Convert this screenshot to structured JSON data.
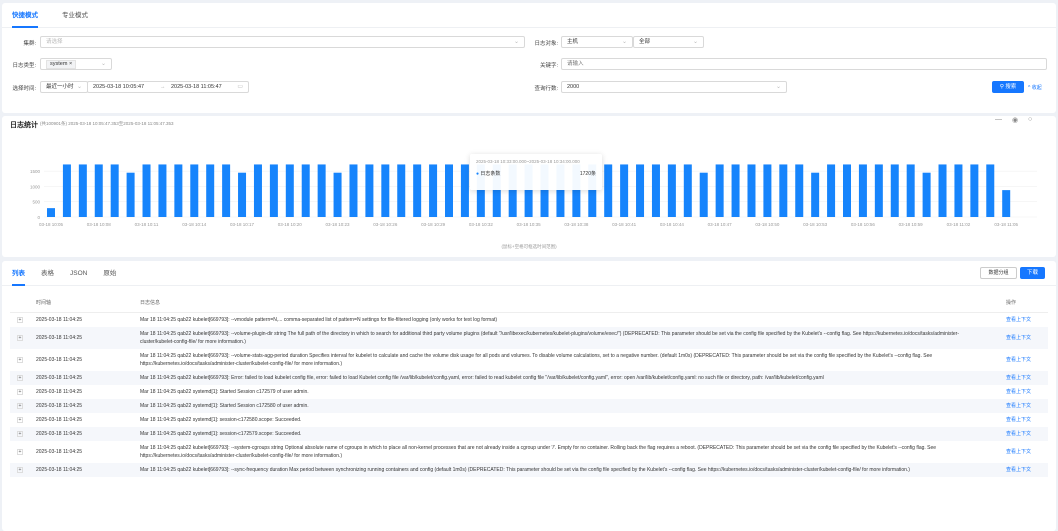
{
  "mode_tabs": [
    {
      "label": "快捷模式",
      "active": true
    },
    {
      "label": "专业模式",
      "active": false
    }
  ],
  "filters": {
    "cluster": {
      "label": "集群:",
      "placeholder": "请选择"
    },
    "log_object": {
      "label": "日志对象:",
      "type_value": "主机",
      "scope_value": "全部"
    },
    "log_type": {
      "label": "日志类型:",
      "tag": "system"
    },
    "keyword": {
      "label": "关键字:",
      "placeholder": "请输入"
    },
    "time": {
      "label": "选择时间:",
      "preset": "最近一小时",
      "start": "2025-03-18 10:05:47",
      "sep": "→",
      "end": "2025-03-18 11:05:47"
    },
    "rows": {
      "label": "查询行数:",
      "value": "2000"
    },
    "search_label": "搜索",
    "collapse_label": "收起"
  },
  "stats": {
    "title": "日志统计",
    "subtitle": "(共100901条) 2025-03-18 10:05:47.353至2025-03-18 11:05:47.353",
    "hint": "(鼠标+空格可框选时间范围)",
    "tooltip": {
      "range": "2025-03-18 10:33:00.000~2025-03-18 10:34:00.000",
      "series": "日志条数",
      "value": "1720条"
    }
  },
  "chart_data": {
    "type": "bar",
    "start_time": "03-18 10:05",
    "x_ticks": [
      "03-18 10:05",
      "03-18 10:08",
      "03-18 10:11",
      "03-18 10:14",
      "03-18 10:17",
      "03-18 10:20",
      "03-18 10:23",
      "03-18 10:26",
      "03-18 10:29",
      "03-18 10:32",
      "03-18 10:35",
      "03-18 10:38",
      "03-18 10:41",
      "03-18 10:44",
      "03-18 10:47",
      "03-18 10:50",
      "03-18 10:53",
      "03-18 10:56",
      "03-18 10:59",
      "03-18 11:02",
      "03-18 11:05"
    ],
    "y_ticks": [
      0,
      500,
      1000,
      1500
    ],
    "ylim": [
      0,
      1800
    ],
    "series": [
      {
        "name": "日志条数",
        "color": "#1684fc",
        "values": [
          290,
          1720,
          1720,
          1720,
          1720,
          1450,
          1720,
          1720,
          1720,
          1720,
          1720,
          1720,
          1450,
          1720,
          1720,
          1720,
          1720,
          1720,
          1450,
          1720,
          1720,
          1720,
          1720,
          1720,
          1720,
          1720,
          1720,
          1720,
          1720,
          1720,
          1720,
          1720,
          1720,
          1720,
          1720,
          1720,
          1720,
          1720,
          1720,
          1720,
          1720,
          1450,
          1720,
          1720,
          1720,
          1720,
          1720,
          1720,
          1450,
          1720,
          1720,
          1720,
          1720,
          1720,
          1720,
          1450,
          1720,
          1720,
          1720,
          1720,
          880
        ]
      }
    ],
    "grid": true
  },
  "result_tabs": [
    {
      "label": "列表",
      "active": true
    },
    {
      "label": "表格",
      "active": false
    },
    {
      "label": "JSON",
      "active": false
    },
    {
      "label": "原始",
      "active": false
    }
  ],
  "actions": {
    "group_label": "数据分组",
    "download_label": "下载"
  },
  "table": {
    "headers": [
      "时间轴",
      "日志信息",
      "操作"
    ],
    "action_label": "查看上下文",
    "rows": [
      {
        "time": "2025-03-18 11:04:25",
        "msg": "Mar 18 11:04:25 qab22 kubelet[669793]: --vmodule pattern=N,... comma-separated list of pattern=N settings for file-filtered logging (only works for text log format)"
      },
      {
        "time": "2025-03-18 11:04:25",
        "msg": "Mar 18 11:04:25 qab22 kubelet[669793]: --volume-plugin-dir string The full path of the directory in which to search for additional third party volume plugins (default \"/usr/libexec/kubernetes/kubelet-plugins/volume/exec/\") (DEPRECATED: This parameter should be set via the config file specified by the Kubelet's --config flag. See https://kubernetes.io/docs/tasks/administer-cluster/kubelet-config-file/ for more information.)"
      },
      {
        "time": "2025-03-18 11:04:25",
        "msg": "Mar 18 11:04:25 qab22 kubelet[669793]: --volume-stats-agg-period duration Specifies interval for kubelet to calculate and cache the volume disk usage for all pods and volumes. To disable volume calculations, set to a negative number. (default 1m0s) (DEPRECATED: This parameter should be set via the config file specified by the Kubelet's --config flag. See https://kubernetes.io/docs/tasks/administer-cluster/kubelet-config-file/ for more information.)"
      },
      {
        "time": "2025-03-18 11:04:25",
        "msg": "Mar 18 11:04:25 qab22 kubelet[669793]: Error: failed to load kubelet config file, error: failed to load Kubelet config file /var/lib/kubelet/config.yaml, error: failed to read kubelet config file \"/var/lib/kubelet/config.yaml\", error: open /var/lib/kubelet/config.yaml: no such file or directory, path: /var/lib/kubelet/config.yaml"
      },
      {
        "time": "2025-03-18 11:04:25",
        "msg": "Mar 18 11:04:25 qab22 systemd[1]: Started Session c172579 of user admin."
      },
      {
        "time": "2025-03-18 11:04:25",
        "msg": "Mar 18 11:04:25 qab22 systemd[1]: Started Session c172580 of user admin."
      },
      {
        "time": "2025-03-18 11:04:25",
        "msg": "Mar 18 11:04:25 qab22 systemd[1]: session-c172580.scope: Succeeded."
      },
      {
        "time": "2025-03-18 11:04:25",
        "msg": "Mar 18 11:04:25 qab22 systemd[1]: session-c172579.scope: Succeeded."
      },
      {
        "time": "2025-03-18 11:04:25",
        "msg": "Mar 18 11:04:25 qab22 kubelet[669793]: --system-cgroups string Optional absolute name of cgroups in which to place all non-kernel processes that are not already inside a cgroup under '/'. Empty for no container. Rolling back the flag requires a reboot. (DEPRECATED: This parameter should be set via the config file specified by the Kubelet's --config flag. See https://kubernetes.io/docs/tasks/administer-cluster/kubelet-config-file/ for more information.)"
      },
      {
        "time": "2025-03-18 11:04:25",
        "msg": "Mar 18 11:04:25 qab22 kubelet[669793]: --sync-frequency duration Max period between synchronizing running containers and config (default 1m0s) (DEPRECATED: This parameter should be set via the config file specified by the Kubelet's --config flag. See https://kubernetes.io/docs/tasks/administer-cluster/kubelet-config-file/ for more information.)"
      }
    ]
  }
}
